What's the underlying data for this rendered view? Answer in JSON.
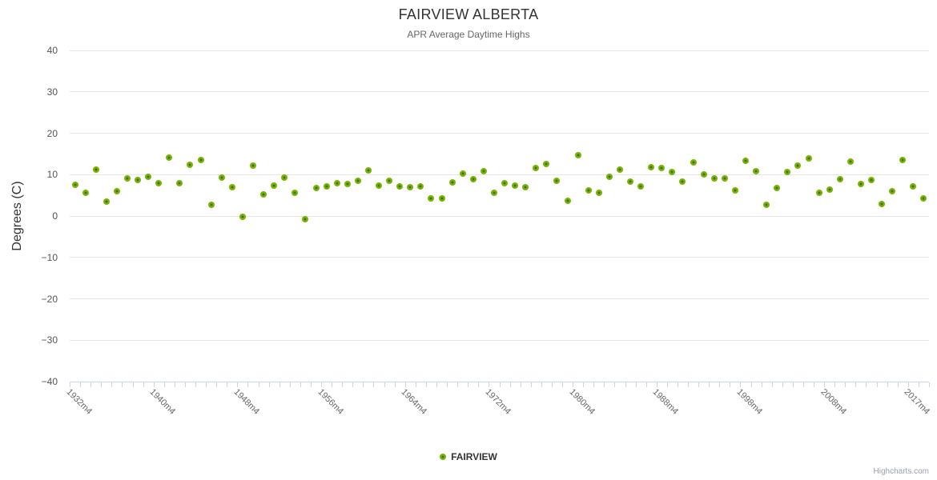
{
  "chart_data": {
    "type": "scatter",
    "title": "FAIRVIEW ALBERTA",
    "subtitle": "APR Average Daytime Highs",
    "xlabel": "",
    "ylabel": "Degrees (C)",
    "ylim": [
      -40,
      40
    ],
    "ytick_interval": 10,
    "ytick_labels": [
      "40",
      "30",
      "20",
      "10",
      "0",
      "−10",
      "−20",
      "−30",
      "−40"
    ],
    "grid": "horizontal",
    "legend_position": "bottom-center",
    "xlabel_every": 8,
    "categories": [
      "1932m4",
      "1933m4",
      "1934m4",
      "1935m4",
      "1936m4",
      "1937m4",
      "1938m4",
      "1939m4",
      "1940m4",
      "1941m4",
      "1942m4",
      "1943m4",
      "1944m4",
      "1945m4",
      "1946m4",
      "1947m4",
      "1948m4",
      "1949m4",
      "1950m4",
      "1951m4",
      "1952m4",
      "1953m4",
      "1954m4",
      "1955m4",
      "1956m4",
      "1957m4",
      "1958m4",
      "1959m4",
      "1960m4",
      "1961m4",
      "1962m4",
      "1963m4",
      "1964m4",
      "1965m4",
      "1966m4",
      "1967m4",
      "1968m4",
      "1969m4",
      "1970m4",
      "1971m4",
      "1972m4",
      "1973m4",
      "1974m4",
      "1975m4",
      "1976m4",
      "1977m4",
      "1978m4",
      "1979m4",
      "1980m4",
      "1981m4",
      "1982m4",
      "1983m4",
      "1984m4",
      "1985m4",
      "1986m4",
      "1987m4",
      "1988m4",
      "1989m4",
      "1990m4",
      "1992m4",
      "1993m4",
      "1995m4",
      "1996m4",
      "1997m4",
      "1998m4",
      "1999m4",
      "2001m4",
      "2002m4",
      "2003m4",
      "2005m4",
      "2006m4",
      "2007m4",
      "2008m4",
      "2009m4",
      "2011m4",
      "2012m4",
      "2013m4",
      "2014m4",
      "2015m4",
      "2016m4",
      "2017m4",
      "2018m4"
    ],
    "series": [
      {
        "name": "FAIRVIEW",
        "values": [
          7.5,
          5.6,
          11.3,
          3.5,
          5.9,
          9.1,
          8.6,
          9.5,
          7.9,
          14.2,
          7.9,
          12.4,
          13.5,
          2.7,
          9.3,
          7.0,
          -0.2,
          12.1,
          5.2,
          7.4,
          9.3,
          5.7,
          -0.8,
          6.8,
          7.2,
          8.0,
          7.7,
          8.5,
          11.0,
          7.3,
          8.5,
          7.2,
          7.0,
          7.1,
          4.3,
          4.3,
          8.2,
          10.3,
          8.8,
          10.8,
          5.7,
          7.9,
          7.4,
          7.0,
          11.5,
          12.6,
          8.5,
          3.7,
          14.6,
          6.1,
          5.6,
          9.5,
          11.2,
          8.4,
          7.1,
          11.7,
          11.5,
          10.6,
          8.4,
          13.0,
          10.1,
          9.0,
          9.0,
          6.2,
          13.3,
          10.8,
          2.7,
          6.7,
          10.6,
          12.2,
          14.0,
          5.6,
          6.3,
          8.9,
          13.1,
          7.7,
          8.6,
          2.9,
          5.9,
          13.6,
          7.2,
          4.2
        ]
      }
    ],
    "colors": {
      "series": "#77b300",
      "marker_center": "#3e6a00",
      "grid": "#e6e6e6",
      "axis_line": "#ccd6eb"
    }
  },
  "credits": {
    "label": "Highcharts.com"
  }
}
